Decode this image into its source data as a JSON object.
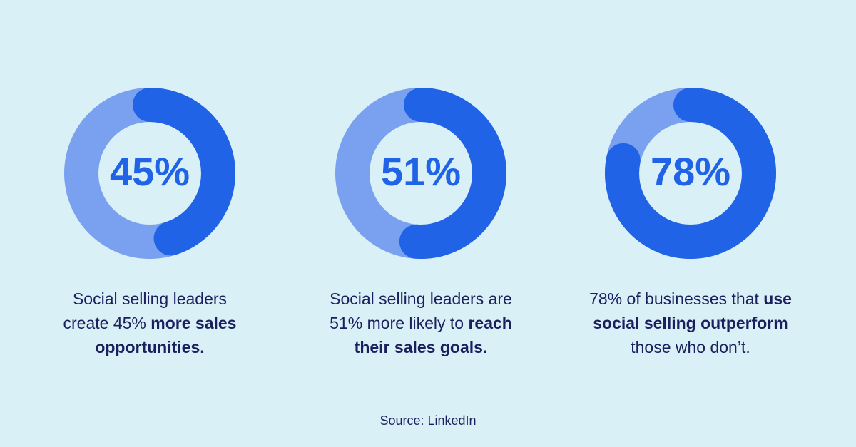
{
  "colors": {
    "background": "#d8f0f6",
    "track": "#7aa0f0",
    "fill": "#2163e6",
    "text": "#1b1f5e"
  },
  "chart_data": [
    {
      "type": "pie",
      "variant": "donut",
      "value": 45,
      "max": 100,
      "label": "45%",
      "description": [
        [
          "Social selling leaders",
          ""
        ],
        [
          "create 45% ",
          "more sales"
        ],
        [
          "",
          "opportunities."
        ]
      ]
    },
    {
      "type": "pie",
      "variant": "donut",
      "value": 51,
      "max": 100,
      "label": "51%",
      "description": [
        [
          "Social selling leaders are",
          ""
        ],
        [
          "51% more likely to ",
          "reach"
        ],
        [
          "",
          "their sales goals."
        ]
      ]
    },
    {
      "type": "pie",
      "variant": "donut",
      "value": 78,
      "max": 100,
      "label": "78%",
      "description": [
        [
          "78% of businesses that ",
          "use"
        ],
        [
          "",
          "social selling outperform"
        ],
        [
          "those who don’t.",
          ""
        ]
      ]
    }
  ],
  "source": "Source: LinkedIn"
}
